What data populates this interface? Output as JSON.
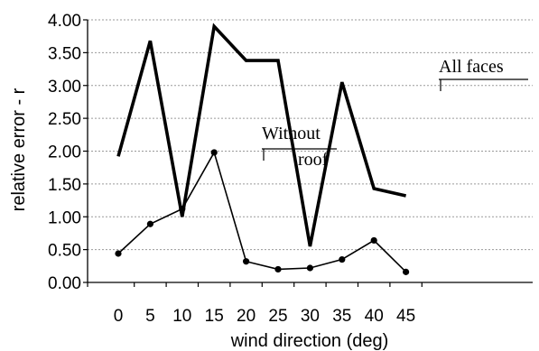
{
  "chart_data": {
    "type": "line",
    "xlabel": "wind direction (deg)",
    "ylabel": "relative error - r",
    "x": [
      0,
      5,
      10,
      15,
      20,
      25,
      30,
      35,
      40,
      45
    ],
    "x_tick_labels": [
      "0",
      "5",
      "10",
      "15",
      "20",
      "25",
      "30",
      "35",
      "40",
      "45"
    ],
    "y_tick_labels": [
      "0.00",
      "0.50",
      "1.00",
      "1.50",
      "2.00",
      "2.50",
      "3.00",
      "3.50",
      "4.00"
    ],
    "ylim": [
      0,
      4
    ],
    "grid": "horizontal dashed",
    "series": [
      {
        "name": "All faces",
        "values": [
          1.92,
          3.68,
          1.0,
          3.9,
          3.38,
          3.38,
          0.55,
          3.05,
          1.43,
          1.32
        ],
        "markers": false,
        "color": "#000000"
      },
      {
        "name": "Without roof",
        "label_lines": [
          "Without",
          "roof"
        ],
        "values": [
          0.44,
          0.89,
          1.12,
          1.98,
          0.32,
          0.2,
          0.22,
          0.35,
          0.64,
          0.16
        ],
        "markers": true,
        "color": "#000000"
      }
    ]
  }
}
